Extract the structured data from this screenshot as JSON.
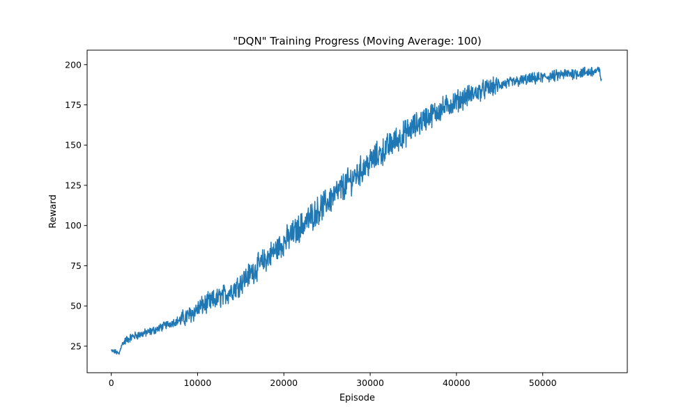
{
  "chart_data": {
    "type": "line",
    "title": "\"DQN\" Training Progress (Moving Average: 100)",
    "xlabel": "Episode",
    "ylabel": "Reward",
    "xlim": [
      -2800,
      59800
    ],
    "ylim": [
      8.5,
      209
    ],
    "x_ticks": [
      0,
      10000,
      20000,
      30000,
      40000,
      50000
    ],
    "x_tick_labels": [
      "0",
      "10000",
      "20000",
      "30000",
      "40000",
      "50000"
    ],
    "y_ticks": [
      25,
      50,
      75,
      100,
      125,
      150,
      175,
      200
    ],
    "y_tick_labels": [
      "25",
      "50",
      "75",
      "100",
      "125",
      "150",
      "175",
      "200"
    ],
    "grid": false,
    "line_color": "#1f77b4",
    "series": [
      {
        "x": [
          0,
          500,
          900,
          1200,
          1800,
          2500,
          3500,
          4500,
          5500,
          6500,
          7500,
          8500,
          9500,
          10500,
          11500,
          12500,
          13500,
          14500,
          15500,
          16500,
          17500,
          18500,
          19500,
          20500,
          21500,
          22500,
          23500,
          24500,
          25500,
          26500,
          27500,
          28500,
          29500,
          30500,
          31500,
          32500,
          33500,
          34500,
          35500,
          36500,
          37500,
          38500,
          39500,
          40500,
          41500,
          42500,
          43500,
          44500,
          45500,
          46500,
          47500,
          48500,
          49500,
          50500,
          51500,
          52500,
          53500,
          54500,
          55500,
          56500,
          56800
        ],
        "values": [
          22,
          21.5,
          20,
          26,
          29,
          31,
          32.5,
          34,
          36,
          38.5,
          40.5,
          42.5,
          46,
          50,
          52.5,
          55,
          58,
          62,
          67,
          72,
          77,
          82,
          87,
          92,
          97,
          102,
          107,
          112,
          117,
          122,
          127,
          132,
          137,
          142,
          146,
          151,
          155,
          159,
          163,
          167,
          170,
          173,
          176,
          178.5,
          181,
          183,
          185,
          186.5,
          188,
          189,
          190,
          191,
          191.5,
          192.5,
          193,
          194,
          194.5,
          195,
          195.5,
          196,
          192
        ]
      }
    ]
  }
}
